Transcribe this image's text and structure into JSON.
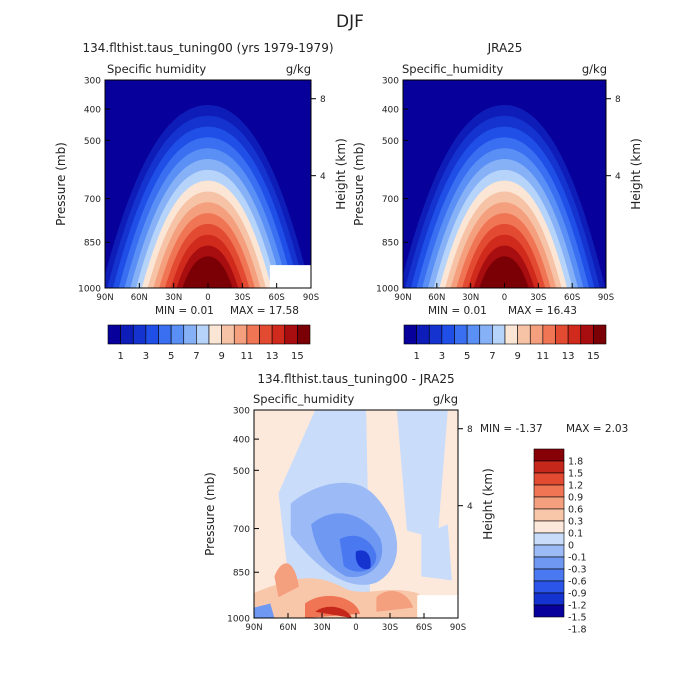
{
  "figure_title": "DJF",
  "colors": {
    "clevels_hum": [
      "#08009a",
      "#0e1cb8",
      "#1433cf",
      "#1f4fe6",
      "#3a6ff2",
      "#5a8ff5",
      "#86b1f7",
      "#b6d4fa",
      "#fbe6d6",
      "#f6c3a7",
      "#f49f7e",
      "#ef7555",
      "#e34a32",
      "#cf2a1c",
      "#a80d0f",
      "#7b0006"
    ],
    "clevels_diff": [
      "#08009a",
      "#1433cf",
      "#2a55e8",
      "#4a78f0",
      "#6f98f3",
      "#9cbbf6",
      "#c9dcfa",
      "#fde9dc",
      "#f8c7a9",
      "#f4a07f",
      "#ef7555",
      "#e24a32",
      "#c6271b",
      "#870005"
    ]
  },
  "panels": {
    "left": {
      "title": "134.flthist.taus_tuning00 (yrs 1979-1979)",
      "var_label": "Specific humidity",
      "units": "g/kg",
      "min_text": "MIN =   0.01",
      "max_text": "MAX =  17.58"
    },
    "right": {
      "title": "JRA25",
      "var_label": "Specific_humidity",
      "units": "g/kg",
      "min_text": "MIN =   0.01",
      "max_text": "MAX =  16.43"
    },
    "bottom": {
      "title": "134.flthist.taus_tuning00 - JRA25",
      "var_label": "Specific_humidity",
      "units": "g/kg",
      "min_text": "MIN =  -1.37",
      "max_text": "MAX =   2.03"
    }
  },
  "axes": {
    "ylabel": "Pressure (mb)",
    "ylabel_right": "Height (km)",
    "pressure_ticks": [
      "300",
      "400",
      "500",
      "700",
      "850",
      "1000"
    ],
    "height_ticks": [
      "8",
      "4"
    ],
    "lat_ticks": [
      "90N",
      "60N",
      "30N",
      "0",
      "30S",
      "60S",
      "90S"
    ]
  },
  "colorbars": {
    "hum_labels": [
      "1",
      "3",
      "5",
      "7",
      "9",
      "11",
      "13",
      "15"
    ],
    "diff_labels": [
      "1.8",
      "1.5",
      "1.2",
      "0.9",
      "0.6",
      "0.3",
      "0.1",
      "0",
      "-0.1",
      "-0.3",
      "-0.6",
      "-0.9",
      "-1.2",
      "-1.5",
      "-1.8"
    ]
  },
  "chart_data": [
    {
      "type": "heatmap",
      "title": "134.flthist.taus_tuning00 (yrs 1979-1979)",
      "variable": "Specific humidity",
      "units": "g/kg",
      "xlabel": "",
      "ylabel": "Pressure (mb)",
      "x_ticks": [
        "90N",
        "60N",
        "30N",
        "0",
        "30S",
        "60S",
        "90S"
      ],
      "y_ticks": [
        300,
        400,
        500,
        700,
        850,
        1000
      ],
      "contour_levels": [
        1,
        2,
        3,
        4,
        5,
        6,
        7,
        8,
        9,
        10,
        11,
        12,
        13,
        14,
        15
      ],
      "min": 0.01,
      "max": 17.58,
      "peak_latitude": 0,
      "peak_pressure_mb": 1000
    },
    {
      "type": "heatmap",
      "title": "JRA25",
      "variable": "Specific_humidity",
      "units": "g/kg",
      "ylabel": "Pressure (mb)",
      "x_ticks": [
        "90N",
        "60N",
        "30N",
        "0",
        "30S",
        "60S",
        "90S"
      ],
      "y_ticks": [
        300,
        400,
        500,
        700,
        850,
        1000
      ],
      "contour_levels": [
        1,
        2,
        3,
        4,
        5,
        6,
        7,
        8,
        9,
        10,
        11,
        12,
        13,
        14,
        15
      ],
      "min": 0.01,
      "max": 16.43,
      "peak_latitude": 0,
      "peak_pressure_mb": 1000
    },
    {
      "type": "heatmap",
      "title": "134.flthist.taus_tuning00 - JRA25",
      "variable": "Specific_humidity",
      "units": "g/kg",
      "ylabel": "Pressure (mb)",
      "x_ticks": [
        "90N",
        "60N",
        "30N",
        "0",
        "30S",
        "60S",
        "90S"
      ],
      "y_ticks": [
        300,
        400,
        500,
        700,
        850,
        1000
      ],
      "contour_levels": [
        -1.8,
        -1.5,
        -1.2,
        -0.9,
        -0.6,
        -0.3,
        -0.1,
        0,
        0.1,
        0.3,
        0.6,
        0.9,
        1.2,
        1.5,
        1.8
      ],
      "min": -1.37,
      "max": 2.03
    }
  ]
}
